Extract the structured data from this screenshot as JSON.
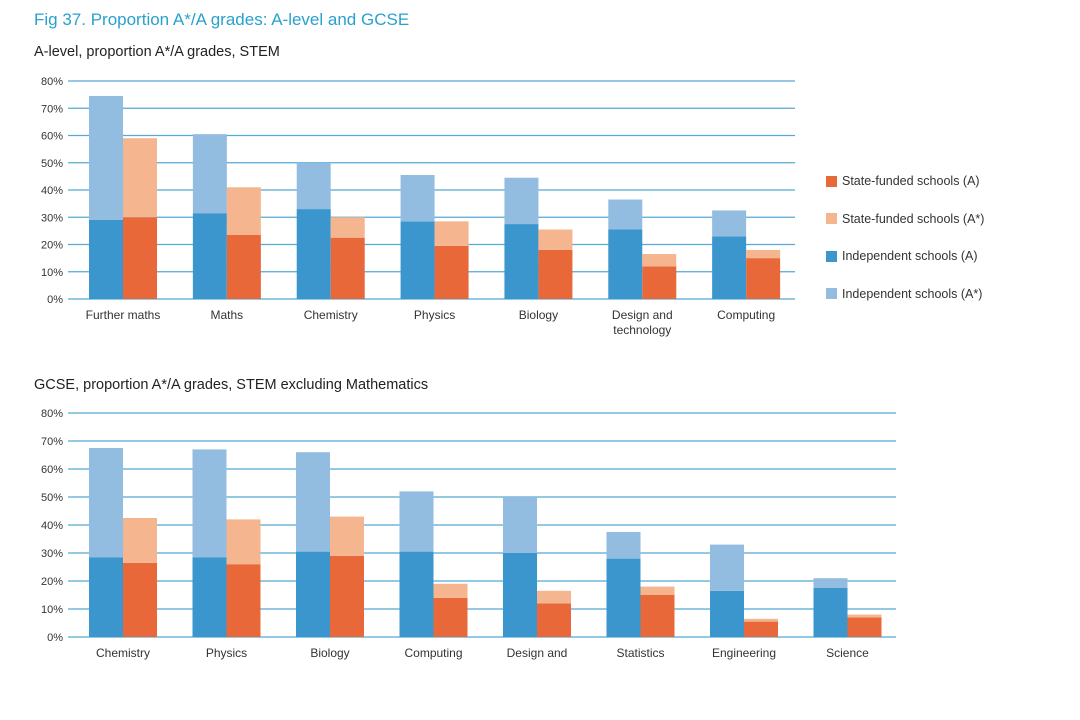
{
  "figure_title": "Fig 37. Proportion A*/A grades: A-level and GCSE",
  "colors": {
    "state_a": "#e8683a",
    "state_astar": "#f5b58f",
    "indep_a": "#3b96cd",
    "indep_astar": "#92bde0",
    "grid": "#55a9d6"
  },
  "legend": [
    {
      "label": "State-funded schools (A)",
      "color": "#e8683a"
    },
    {
      "label": "State-funded schools (A*)",
      "color": "#f5b58f"
    },
    {
      "label": "Independent schools (A)",
      "color": "#3b96cd"
    },
    {
      "label": "Independent schools (A*)",
      "color": "#92bde0"
    }
  ],
  "chart_data": [
    {
      "type": "bar",
      "stacked": true,
      "title": "A-level, proportion A*/A grades, STEM",
      "categories": [
        "Further maths",
        "Maths",
        "Chemistry",
        "Physics",
        "Biology",
        "Design and technology",
        "Computing"
      ],
      "ylim": [
        0,
        80
      ],
      "yticks": [
        "0%",
        "10%",
        "20%",
        "30%",
        "40%",
        "50%",
        "60%",
        "70%",
        "80%"
      ],
      "series": [
        {
          "name": "Independent schools (A)",
          "group": "independent",
          "values": [
            29,
            31.5,
            33,
            28.5,
            27.5,
            25.5,
            23
          ]
        },
        {
          "name": "Independent schools (A*)",
          "group": "independent",
          "values": [
            45.5,
            29,
            17,
            17,
            17,
            11,
            9.5
          ]
        },
        {
          "name": "State-funded schools (A)",
          "group": "state",
          "values": [
            30,
            23.5,
            22.5,
            19.5,
            18,
            12,
            15
          ]
        },
        {
          "name": "State-funded schools (A*)",
          "group": "state",
          "values": [
            29,
            17.5,
            7.5,
            9,
            7.5,
            4.5,
            3
          ]
        }
      ]
    },
    {
      "type": "bar",
      "stacked": true,
      "title": "GCSE, proportion A*/A grades, STEM excluding Mathematics",
      "categories": [
        "Chemistry",
        "Physics",
        "Biology",
        "Computing",
        "Design and",
        "Statistics",
        "Engineering",
        "Science"
      ],
      "ylim": [
        0,
        80
      ],
      "yticks": [
        "0%",
        "10%",
        "20%",
        "30%",
        "40%",
        "50%",
        "60%",
        "70%",
        "80%"
      ],
      "series": [
        {
          "name": "Independent schools (A)",
          "group": "independent",
          "values": [
            28.5,
            28.5,
            30.5,
            30.5,
            30,
            28,
            16.5,
            17.5
          ]
        },
        {
          "name": "Independent schools (A*)",
          "group": "independent",
          "values": [
            39,
            38.5,
            35.5,
            21.5,
            20,
            9.5,
            16.5,
            3.5
          ]
        },
        {
          "name": "State-funded schools (A)",
          "group": "state",
          "values": [
            26.5,
            26,
            29,
            14,
            12,
            15,
            5.5,
            7
          ]
        },
        {
          "name": "State-funded schools (A*)",
          "group": "state",
          "values": [
            16,
            16,
            14,
            5,
            4.5,
            3,
            1,
            1
          ]
        }
      ]
    }
  ]
}
